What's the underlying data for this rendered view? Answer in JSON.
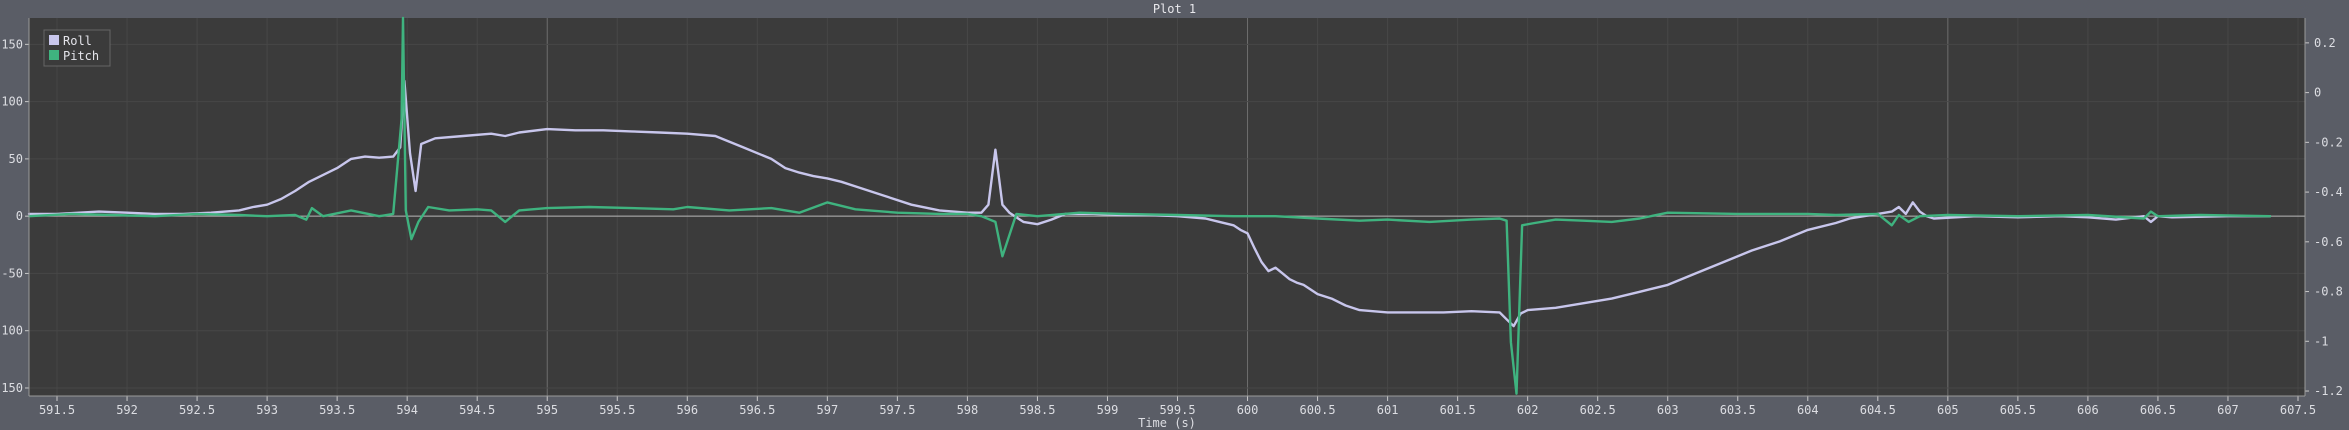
{
  "window": {
    "title": "Plot 1"
  },
  "colors": {
    "roll": "#c8c6ec",
    "pitch": "#3fb37f",
    "plot_bg": "#3b3b3b",
    "frame_bg": "#5a5d66",
    "grid": "#4a4a4a",
    "zero_line": "#b8b8b8"
  },
  "chart_data": {
    "type": "line",
    "title": "Plot 1",
    "xlabel": "Time (s)",
    "ylabel": "",
    "xlim": [
      591.3,
      607.55
    ],
    "ylim": [
      -157,
      173
    ],
    "y2lim": [
      -1.22,
      0.3
    ],
    "x_ticks": [
      591.5,
      592,
      592.5,
      593,
      593.5,
      594,
      594.5,
      595,
      595.5,
      596,
      596.5,
      597,
      597.5,
      598,
      598.5,
      599,
      599.5,
      600,
      600.5,
      601,
      601.5,
      602,
      602.5,
      603,
      603.5,
      604,
      604.5,
      605,
      605.5,
      606,
      606.5,
      607,
      607.5
    ],
    "y_ticks": [
      150,
      100,
      50,
      0,
      -50,
      -100,
      -150
    ],
    "y2_ticks": [
      0.2,
      0,
      -0.2,
      -0.4,
      -0.6,
      -0.8,
      -1,
      -1.2
    ],
    "grid": true,
    "legend": "top-left",
    "series": [
      {
        "name": "Roll",
        "color": "#c8c6ec",
        "x": [
          591.3,
          591.5,
          591.8,
          592.0,
          592.2,
          592.4,
          592.6,
          592.8,
          592.9,
          593.0,
          593.1,
          593.2,
          593.3,
          593.4,
          593.5,
          593.6,
          593.7,
          593.8,
          593.9,
          593.95,
          593.98,
          594.02,
          594.06,
          594.1,
          594.2,
          594.4,
          594.6,
          594.7,
          594.8,
          595.0,
          595.2,
          595.4,
          595.6,
          595.8,
          596.0,
          596.2,
          596.4,
          596.6,
          596.7,
          596.8,
          596.9,
          597.0,
          597.1,
          597.2,
          597.4,
          597.6,
          597.8,
          598.0,
          598.1,
          598.15,
          598.2,
          598.25,
          598.3,
          598.4,
          598.5,
          598.6,
          598.7,
          598.9,
          599.1,
          599.3,
          599.5,
          599.7,
          599.8,
          599.9,
          599.95,
          600.0,
          600.05,
          600.1,
          600.15,
          600.2,
          600.25,
          600.3,
          600.35,
          600.4,
          600.5,
          600.6,
          600.7,
          600.8,
          601.0,
          601.2,
          601.4,
          601.6,
          601.8,
          601.85,
          601.9,
          601.95,
          602.0,
          602.2,
          602.4,
          602.6,
          602.8,
          603.0,
          603.2,
          603.4,
          603.6,
          603.8,
          604.0,
          604.2,
          604.3,
          604.4,
          604.5,
          604.6,
          604.65,
          604.7,
          604.75,
          604.8,
          604.85,
          604.9,
          605.2,
          605.5,
          605.8,
          606.0,
          606.2,
          606.4,
          606.45,
          606.5,
          606.6,
          607.0,
          607.3
        ],
        "y": [
          2,
          2,
          4,
          3,
          2,
          2,
          3,
          5,
          8,
          10,
          15,
          22,
          30,
          36,
          42,
          50,
          52,
          51,
          52,
          60,
          118,
          55,
          22,
          63,
          68,
          70,
          72,
          70,
          73,
          76,
          75,
          75,
          74,
          73,
          72,
          70,
          60,
          50,
          42,
          38,
          35,
          33,
          30,
          26,
          18,
          10,
          5,
          3,
          3,
          10,
          58,
          10,
          3,
          -5,
          -7,
          -3,
          2,
          2,
          1,
          1,
          0,
          -2,
          -5,
          -8,
          -12,
          -15,
          -28,
          -40,
          -48,
          -45,
          -50,
          -55,
          -58,
          -60,
          -68,
          -72,
          -78,
          -82,
          -84,
          -84,
          -84,
          -83,
          -84,
          -90,
          -96,
          -85,
          -82,
          -80,
          -76,
          -72,
          -66,
          -60,
          -50,
          -40,
          -30,
          -22,
          -12,
          -6,
          -2,
          0,
          2,
          4,
          8,
          2,
          12,
          4,
          0,
          -2,
          0,
          -1,
          0,
          -1,
          -3,
          0,
          -5,
          0,
          -1,
          0,
          0
        ]
      },
      {
        "name": "Pitch",
        "color": "#3fb37f",
        "x": [
          591.3,
          591.6,
          591.9,
          592.2,
          592.5,
          592.8,
          593.0,
          593.2,
          593.28,
          593.32,
          593.4,
          593.6,
          593.8,
          593.9,
          593.96,
          593.97,
          593.99,
          594.03,
          594.08,
          594.15,
          594.3,
          594.5,
          594.6,
          594.7,
          594.8,
          595.0,
          595.3,
          595.6,
          595.9,
          596.0,
          596.3,
          596.6,
          596.8,
          597.0,
          597.2,
          597.5,
          597.8,
          598.0,
          598.1,
          598.2,
          598.25,
          598.35,
          598.5,
          598.8,
          599.1,
          599.5,
          599.9,
          600.2,
          600.5,
          600.8,
          601.0,
          601.3,
          601.6,
          601.8,
          601.85,
          601.88,
          601.92,
          601.96,
          602.05,
          602.2,
          602.4,
          602.6,
          602.8,
          603.0,
          603.5,
          604.0,
          604.2,
          604.5,
          604.6,
          604.65,
          604.72,
          604.8,
          605.0,
          605.5,
          606.0,
          606.4,
          606.45,
          606.5,
          606.8,
          607.3
        ],
        "y": [
          0,
          2,
          1,
          0,
          2,
          1,
          0,
          1,
          -3,
          7,
          0,
          5,
          0,
          2,
          85,
          173,
          5,
          -20,
          -5,
          8,
          5,
          6,
          5,
          -5,
          5,
          7,
          8,
          7,
          6,
          8,
          5,
          7,
          3,
          12,
          6,
          3,
          2,
          2,
          0,
          -5,
          -35,
          2,
          0,
          3,
          2,
          1,
          0,
          0,
          -2,
          -4,
          -3,
          -5,
          -3,
          -2,
          -4,
          -110,
          -155,
          -8,
          -6,
          -3,
          -4,
          -5,
          -2,
          3,
          2,
          2,
          1,
          2,
          -8,
          1,
          -5,
          0,
          1,
          0,
          1,
          -2,
          4,
          0,
          1,
          0
        ]
      }
    ]
  }
}
